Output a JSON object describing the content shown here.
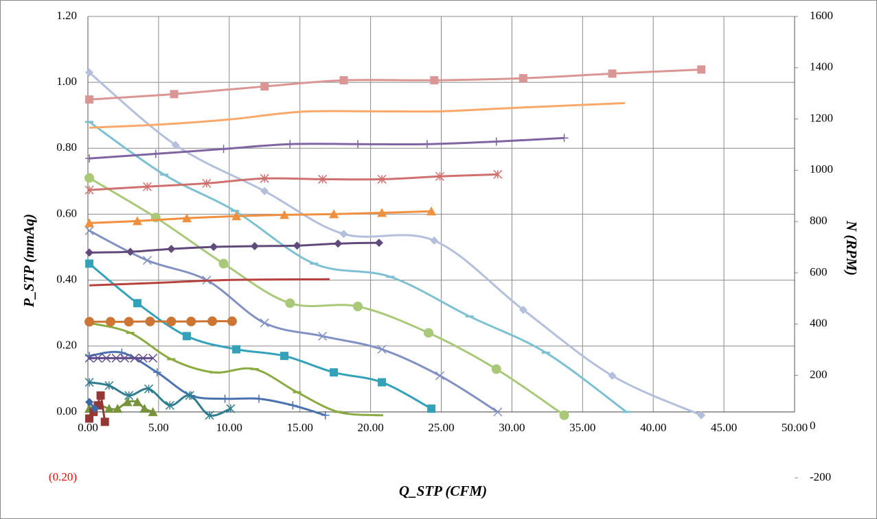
{
  "chart_data": {
    "type": "line",
    "x_label": "Q_STP (CFM)",
    "y_label": "P_STP (mmAq)",
    "y2_label": "N (RPM)",
    "xlim": [
      0,
      50
    ],
    "xticks": [
      {
        "value": 0,
        "label": "0.00"
      },
      {
        "value": 5,
        "label": "5.00"
      },
      {
        "value": 10,
        "label": "10.00"
      },
      {
        "value": 15,
        "label": "15.00"
      },
      {
        "value": 20,
        "label": "20.00"
      },
      {
        "value": 25,
        "label": "25.00"
      },
      {
        "value": 30,
        "label": "30.00"
      },
      {
        "value": 35,
        "label": "35.00"
      },
      {
        "value": 40,
        "label": "40.00"
      },
      {
        "value": 45,
        "label": "45.00"
      },
      {
        "value": 50,
        "label": "50.00"
      }
    ],
    "ylim": [
      -0.2,
      1.2
    ],
    "yticks": [
      {
        "value": 1.2,
        "label": "1.20"
      },
      {
        "value": 1.0,
        "label": "1.00"
      },
      {
        "value": 0.8,
        "label": "0.80"
      },
      {
        "value": 0.6,
        "label": "0.60"
      },
      {
        "value": 0.4,
        "label": "0.40"
      },
      {
        "value": 0.2,
        "label": "0.20"
      },
      {
        "value": 0,
        "label": "0.00"
      },
      {
        "value": -0.2,
        "label": "(0.20)",
        "color": "#ff0000"
      }
    ],
    "y2lim": [
      -200,
      1600
    ],
    "y2ticks": [
      1600,
      1400,
      1200,
      1000,
      800,
      600,
      400,
      200,
      0,
      -200
    ],
    "grid": true,
    "series": [
      {
        "color": "#b3bfdb",
        "marker": "diamond",
        "x": [
          0.1,
          6.2,
          12.5,
          18.1,
          24.5,
          30.8,
          37.1,
          43.4
        ],
        "values": [
          1.03,
          0.81,
          0.67,
          0.54,
          0.52,
          0.31,
          0.11,
          -0.01
        ]
      },
      {
        "color": "#7cc0d2",
        "marker": "dash",
        "x": [
          0.1,
          5.4,
          10.4,
          16.0,
          21.4,
          27.0,
          32.4,
          38.1
        ],
        "values": [
          0.88,
          0.72,
          0.61,
          0.45,
          0.41,
          0.29,
          0.18,
          0.0
        ]
      },
      {
        "color": "#a9c979",
        "marker": "circle",
        "x": [
          0.1,
          4.8,
          9.6,
          14.3,
          19.1,
          24.1,
          28.9,
          33.7
        ],
        "values": [
          0.71,
          0.59,
          0.45,
          0.33,
          0.32,
          0.24,
          0.13,
          -0.01
        ]
      },
      {
        "color": "#8090c2",
        "marker": "x",
        "x": [
          0.1,
          4.2,
          8.4,
          12.5,
          16.6,
          20.8,
          24.9,
          29.0
        ],
        "values": [
          0.55,
          0.46,
          0.4,
          0.27,
          0.23,
          0.19,
          0.11,
          0.0
        ]
      },
      {
        "color": "#33a2b9",
        "marker": "square",
        "x": [
          0.1,
          3.5,
          7.0,
          10.5,
          13.9,
          17.4,
          20.8,
          24.3
        ],
        "values": [
          0.45,
          0.33,
          0.23,
          0.19,
          0.17,
          0.12,
          0.09,
          0.01
        ]
      },
      {
        "color": "#8bab42",
        "marker": "dash",
        "x": [
          0.1,
          3.0,
          5.9,
          8.9,
          11.8,
          14.8,
          17.7,
          20.6
        ],
        "values": [
          0.27,
          0.24,
          0.16,
          0.12,
          0.13,
          0.06,
          0.0,
          -0.01
        ]
      },
      {
        "color": "#4a72b0",
        "marker": "plus",
        "x": [
          0.1,
          2.4,
          4.9,
          7.3,
          9.7,
          12.1,
          14.5,
          16.8
        ],
        "values": [
          0.17,
          0.18,
          0.12,
          0.05,
          0.04,
          0.04,
          0.02,
          -0.01
        ]
      },
      {
        "color": "#2f7d8f",
        "marker": "star",
        "x": [
          0.1,
          1.5,
          2.9,
          4.3,
          5.8,
          7.2,
          8.6,
          10.1
        ],
        "values": [
          0.09,
          0.08,
          0.05,
          0.07,
          0.02,
          0.05,
          -0.01,
          0.01
        ]
      },
      {
        "color": "#77933c",
        "marker": "triangle",
        "x": [
          0.1,
          0.8,
          1.5,
          2.1,
          2.8,
          3.5,
          4.0,
          4.6
        ],
        "values": [
          0.01,
          0.02,
          0.01,
          0.01,
          0.03,
          0.03,
          0.01,
          0.0
        ]
      },
      {
        "color": "#953735",
        "marker": "square",
        "x": [
          0.1,
          0.4,
          0.7,
          0.9,
          1.2
        ],
        "values": [
          -0.02,
          0.0,
          0.02,
          0.05,
          -0.03
        ]
      },
      {
        "color": "#3d68a8",
        "marker": "diamond",
        "x": [
          0.1,
          0.5
        ],
        "values": [
          0.03,
          0.01
        ]
      },
      {
        "color": "#d99694",
        "marker": "square",
        "axis": "y2",
        "x": [
          0.1,
          6.1,
          12.5,
          18.1,
          24.5,
          30.8,
          37.1,
          43.4
        ],
        "values": [
          1276,
          1297,
          1327,
          1351,
          1351,
          1359,
          1377,
          1393
        ]
      },
      {
        "color": "#f9a86a",
        "marker": "none",
        "axis": "y2",
        "x": [
          0.1,
          5,
          10,
          15,
          20,
          25,
          30,
          38
        ],
        "values": [
          1166,
          1178,
          1198,
          1228,
          1230,
          1230,
          1243,
          1262
        ]
      },
      {
        "color": "#8064a2",
        "marker": "plus",
        "axis": "y2",
        "x": [
          0.1,
          4.8,
          9.6,
          14.3,
          19.1,
          24.0,
          28.9,
          33.7
        ],
        "values": [
          1046,
          1064,
          1083,
          1102,
          1102,
          1102,
          1112,
          1126
        ]
      },
      {
        "color": "#d0706e",
        "marker": "star",
        "axis": "y2",
        "x": [
          0.1,
          4.2,
          8.4,
          12.5,
          16.6,
          20.8,
          24.9,
          29.0
        ],
        "values": [
          923,
          936,
          949,
          968,
          965,
          965,
          976,
          984
        ]
      },
      {
        "color": "#f0903e",
        "marker": "triangle",
        "axis": "y2",
        "x": [
          0.1,
          3.5,
          7.0,
          10.5,
          13.9,
          17.4,
          20.8,
          24.3
        ],
        "values": [
          794,
          802,
          813,
          821,
          826,
          829,
          834,
          840
        ]
      },
      {
        "color": "#604a7b",
        "marker": "diamond",
        "axis": "y2",
        "x": [
          0.1,
          3.0,
          5.9,
          8.9,
          11.8,
          14.8,
          17.7,
          20.6
        ],
        "values": [
          679,
          682,
          693,
          701,
          704,
          706,
          714,
          717
        ]
      },
      {
        "color": "#b7413e",
        "marker": "none",
        "axis": "y2",
        "x": [
          0.1,
          5,
          10,
          17.1
        ],
        "values": [
          551,
          561,
          572,
          575
        ]
      },
      {
        "color": "#cc7534",
        "marker": "circle",
        "axis": "y2",
        "x": [
          0.1,
          1.6,
          2.9,
          4.4,
          5.9,
          7.3,
          8.8,
          10.2
        ],
        "values": [
          409,
          409,
          409,
          410,
          410,
          410,
          411,
          411
        ]
      },
      {
        "color": "#5f4b8b",
        "marker": "x",
        "axis": "y2",
        "x": [
          0.1,
          0.7,
          1.3,
          2.0,
          2.6,
          3.3,
          3.9,
          4.6
        ],
        "values": [
          267,
          267,
          267,
          267,
          267,
          267,
          267,
          267
        ]
      }
    ]
  }
}
